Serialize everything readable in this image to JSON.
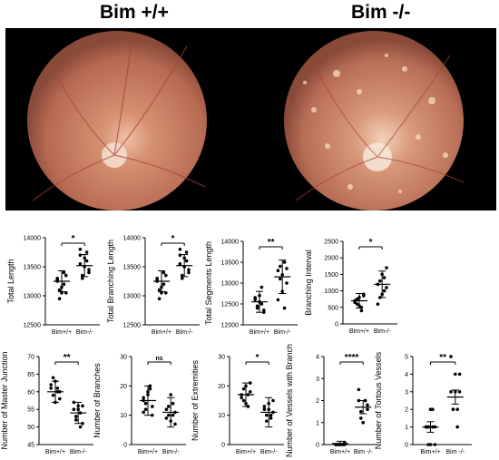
{
  "header": {
    "left_title": "Bim +/+",
    "right_title": "Bim -/-"
  },
  "images": {
    "left": "fundus-photo-wildtype",
    "right": "fundus-photo-bim-knockout"
  },
  "colors": {
    "points": "#000000",
    "bracket": "#000000",
    "fundus_bg": "#d99a78"
  },
  "chart_data": [
    {
      "type": "scatter",
      "ylabel": "Total Length",
      "ylim": [
        12500,
        14000
      ],
      "yticks": [
        12500,
        13000,
        13500,
        14000
      ],
      "categories": [
        "Bim+/+",
        "Bim-/-"
      ],
      "sig": "*",
      "series": [
        {
          "values": [
            13300,
            13100,
            13050,
            13200,
            13350,
            13250,
            12950,
            13150,
            13400,
            13050,
            13280
          ],
          "mean": 13250,
          "sd": 180
        },
        {
          "values": [
            13700,
            13350,
            13500,
            13600,
            13400,
            13550,
            13300,
            13650,
            13750,
            13450,
            13800
          ],
          "mean": 13520,
          "sd": 190
        }
      ]
    },
    {
      "type": "scatter",
      "ylabel": "Total Branching Length",
      "ylim": [
        12500,
        14000
      ],
      "yticks": [
        12500,
        13000,
        13500,
        14000
      ],
      "categories": [
        "Bim+/+",
        "Bim-/-"
      ],
      "sig": "*",
      "series": [
        {
          "values": [
            13300,
            13100,
            13050,
            13200,
            13350,
            13250,
            12950,
            13150,
            13400,
            13050,
            13280
          ],
          "mean": 13250,
          "sd": 180
        },
        {
          "values": [
            13700,
            13350,
            13500,
            13600,
            13400,
            13550,
            13300,
            13650,
            13750,
            13450,
            13800
          ],
          "mean": 13520,
          "sd": 190
        }
      ]
    },
    {
      "type": "scatter",
      "ylabel": "Total Segments Length",
      "ylim": [
        12000,
        14000
      ],
      "yticks": [
        12000,
        12500,
        13000,
        13500,
        14000
      ],
      "categories": [
        "Bim+/+",
        "Bim-/-"
      ],
      "sig": "**",
      "series": [
        {
          "values": [
            12600,
            12400,
            12700,
            12500,
            12300,
            12650,
            12450,
            12550,
            12900,
            12350
          ],
          "mean": 12550,
          "sd": 250
        },
        {
          "values": [
            13300,
            13100,
            12800,
            13500,
            13000,
            12600,
            13400,
            13200,
            12400,
            13350
          ],
          "mean": 13150,
          "sd": 400
        }
      ]
    },
    {
      "type": "scatter",
      "ylabel": "Branching Interval",
      "ylim": [
        0,
        2500
      ],
      "yticks": [
        0,
        500,
        1000,
        1500,
        2000,
        2500
      ],
      "categories": [
        "Bim+/+",
        "Bim-/-"
      ],
      "sig": "*",
      "series": [
        {
          "values": [
            700,
            600,
            800,
            500,
            900,
            650,
            750,
            550,
            400,
            850,
            700
          ],
          "mean": 700,
          "sd": 220
        },
        {
          "values": [
            1200,
            800,
            1500,
            1000,
            1700,
            600,
            1300,
            900,
            1400,
            1100
          ],
          "mean": 1200,
          "sd": 400
        }
      ]
    },
    {
      "type": "scatter",
      "ylabel": "Number of Master Junction",
      "ylim": [
        45,
        70
      ],
      "yticks": [
        45,
        50,
        55,
        60,
        65,
        70
      ],
      "categories": [
        "Bim+/+",
        "Bim-/-"
      ],
      "sig": "**",
      "series": [
        {
          "values": [
            61,
            59,
            63,
            60,
            58,
            62,
            64,
            57,
            61,
            60
          ],
          "mean": 60,
          "sd": 3
        },
        {
          "values": [
            55,
            52,
            56,
            54,
            51,
            57,
            53,
            55,
            50,
            56
          ],
          "mean": 54,
          "sd": 3
        }
      ]
    },
    {
      "type": "scatter",
      "ylabel": "Number of Branches",
      "ylim": [
        0,
        30
      ],
      "yticks": [
        0,
        10,
        20,
        30
      ],
      "categories": [
        "Bim+/+",
        "Bim-/-"
      ],
      "sig": "ns",
      "series": [
        {
          "values": [
            15,
            12,
            18,
            20,
            10,
            16,
            14,
            17,
            19,
            13,
            11
          ],
          "mean": 15,
          "sd": 5
        },
        {
          "values": [
            12,
            10,
            8,
            14,
            11,
            9,
            13,
            17,
            10,
            7
          ],
          "mean": 11,
          "sd": 5
        }
      ]
    },
    {
      "type": "scatter",
      "ylabel": "Number of Extremities",
      "ylim": [
        0,
        30
      ],
      "yticks": [
        0,
        10,
        20,
        30
      ],
      "categories": [
        "Bim+/+",
        "Bim-/-"
      ],
      "sig": "*",
      "series": [
        {
          "values": [
            17,
            15,
            20,
            13,
            18,
            16,
            19,
            14,
            17,
            21
          ],
          "mean": 17,
          "sd": 4
        },
        {
          "values": [
            12,
            10,
            14,
            9,
            11,
            13,
            8,
            12,
            10,
            15
          ],
          "mean": 11,
          "sd": 5
        }
      ]
    },
    {
      "type": "scatter",
      "ylabel": "Number of Vessels with Branch",
      "ylim": [
        0,
        4
      ],
      "yticks": [
        0,
        1,
        2,
        3,
        4
      ],
      "categories": [
        "Bim+/+",
        "Bim -/-"
      ],
      "sig": "****",
      "series": [
        {
          "values": [
            0,
            0,
            0,
            0,
            0.1,
            0,
            0,
            0,
            0,
            0,
            0
          ],
          "mean": 0.05,
          "sd": 0.1
        },
        {
          "values": [
            2,
            1.5,
            1,
            2,
            1.8,
            2.5,
            1.2,
            1,
            2,
            1.6
          ],
          "mean": 1.7,
          "sd": 0.3
        }
      ]
    },
    {
      "type": "scatter",
      "ylabel": "Number of Tortous Vessels",
      "ylim": [
        0,
        5
      ],
      "yticks": [
        0,
        1,
        2,
        3,
        4,
        5
      ],
      "categories": [
        "Bim+/+",
        "Bim -/-"
      ],
      "sig": "**",
      "series": [
        {
          "values": [
            1,
            1,
            0,
            2,
            1,
            1,
            0,
            2,
            1,
            0,
            1,
            1
          ],
          "mean": 1,
          "sd": 0.3
        },
        {
          "values": [
            3,
            2,
            4,
            2,
            3,
            5,
            2,
            3,
            1,
            4
          ],
          "mean": 2.7,
          "sd": 0.4
        }
      ]
    }
  ]
}
